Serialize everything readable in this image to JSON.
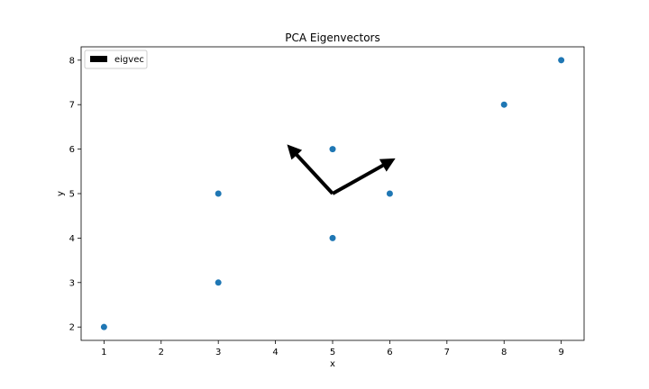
{
  "chart_data": {
    "type": "scatter",
    "title": "PCA Eigenvectors",
    "xlabel": "x",
    "ylabel": "y",
    "xlim": [
      0.6,
      9.4
    ],
    "ylim": [
      1.7,
      8.3
    ],
    "xticks": [
      1,
      2,
      3,
      4,
      5,
      6,
      7,
      8,
      9
    ],
    "yticks": [
      2,
      3,
      4,
      5,
      6,
      7,
      8
    ],
    "grid": false,
    "legend_placement": "top-left",
    "series": [
      {
        "kind": "points",
        "color": "#1f77b4",
        "points": [
          {
            "x": 1,
            "y": 2
          },
          {
            "x": 3,
            "y": 3
          },
          {
            "x": 3,
            "y": 5
          },
          {
            "x": 5,
            "y": 4
          },
          {
            "x": 5,
            "y": 6
          },
          {
            "x": 6,
            "y": 5
          },
          {
            "x": 8,
            "y": 7
          },
          {
            "x": 9,
            "y": 8
          }
        ]
      },
      {
        "kind": "arrows",
        "name": "eigvec",
        "color": "#000000",
        "origin": {
          "x": 5,
          "y": 5
        },
        "vectors": [
          {
            "dx": 1.0,
            "dy": 0.72
          },
          {
            "dx": -0.72,
            "dy": 1.0
          }
        ]
      }
    ]
  }
}
